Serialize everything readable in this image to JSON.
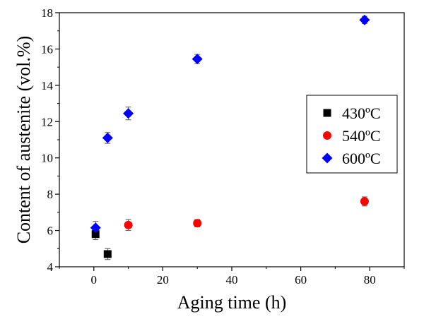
{
  "chart_data": {
    "type": "scatter",
    "xlabel": "Aging time (h)",
    "ylabel": "Content of austenite (vol.%)",
    "xlim": [
      -10,
      90
    ],
    "ylim": [
      4,
      18
    ],
    "x_ticks": [
      0,
      20,
      40,
      60,
      80
    ],
    "y_ticks": [
      4,
      6,
      8,
      10,
      12,
      14,
      16,
      18
    ],
    "grid": false,
    "legend_position": "right",
    "series": [
      {
        "name": "430ºC",
        "marker": "square",
        "color": "#000000",
        "points": [
          {
            "x": 0.5,
            "y": 5.8,
            "err": 0.3
          },
          {
            "x": 4,
            "y": 4.7,
            "err": 0.3
          }
        ]
      },
      {
        "name": "540ºC",
        "marker": "circle",
        "color": "#ff0000",
        "points": [
          {
            "x": 10,
            "y": 6.3,
            "err": 0.3
          },
          {
            "x": 30,
            "y": 6.4,
            "err": 0.2
          },
          {
            "x": 78.5,
            "y": 7.6,
            "err": 0.25
          }
        ]
      },
      {
        "name": "600ºC",
        "marker": "diamond",
        "color": "#0000ff",
        "points": [
          {
            "x": 0.5,
            "y": 6.15,
            "err": 0.35
          },
          {
            "x": 4,
            "y": 11.1,
            "err": 0.3
          },
          {
            "x": 10,
            "y": 12.45,
            "err": 0.35
          },
          {
            "x": 30,
            "y": 15.45,
            "err": 0.25
          },
          {
            "x": 78.5,
            "y": 17.6,
            "err": 0.2
          }
        ]
      }
    ]
  }
}
